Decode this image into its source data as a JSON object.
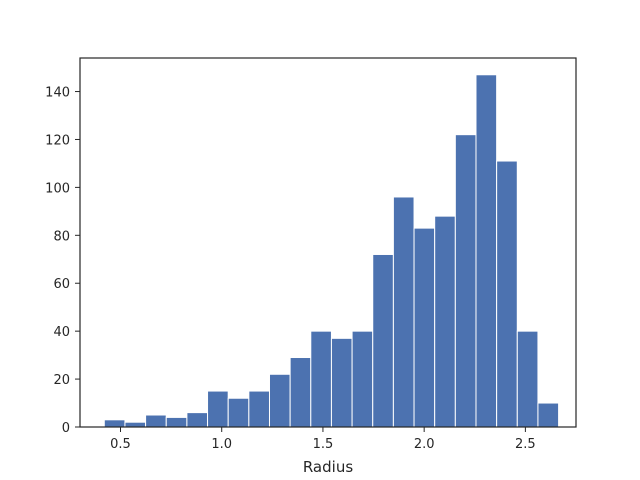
{
  "chart_data": {
    "type": "bar",
    "title": "",
    "xlabel": "Radius",
    "ylabel": "",
    "xlim": [
      0.3,
      2.75
    ],
    "ylim": [
      0,
      154
    ],
    "grid": false,
    "bar_color": "#4c72b0",
    "bar_edge_color": "#ffffff",
    "bin_edges": [
      0.42,
      0.522,
      0.624,
      0.726,
      0.828,
      0.93,
      1.032,
      1.134,
      1.236,
      1.338,
      1.44,
      1.542,
      1.644,
      1.746,
      1.848,
      1.95,
      2.052,
      2.154,
      2.256,
      2.358,
      2.46,
      2.562,
      2.664
    ],
    "values": [
      3,
      2,
      5,
      4,
      6,
      15,
      12,
      15,
      22,
      29,
      40,
      37,
      40,
      72,
      96,
      83,
      88,
      122,
      147,
      111,
      40,
      10
    ],
    "x_ticks": [
      {
        "value": 0.5,
        "label": "0.5"
      },
      {
        "value": 1.0,
        "label": "1.0"
      },
      {
        "value": 1.5,
        "label": "1.5"
      },
      {
        "value": 2.0,
        "label": "2.0"
      },
      {
        "value": 2.5,
        "label": "2.5"
      }
    ],
    "y_ticks": [
      {
        "value": 0,
        "label": "0"
      },
      {
        "value": 20,
        "label": "20"
      },
      {
        "value": 40,
        "label": "40"
      },
      {
        "value": 60,
        "label": "60"
      },
      {
        "value": 80,
        "label": "80"
      },
      {
        "value": 100,
        "label": "100"
      },
      {
        "value": 120,
        "label": "120"
      },
      {
        "value": 140,
        "label": "140"
      }
    ]
  }
}
